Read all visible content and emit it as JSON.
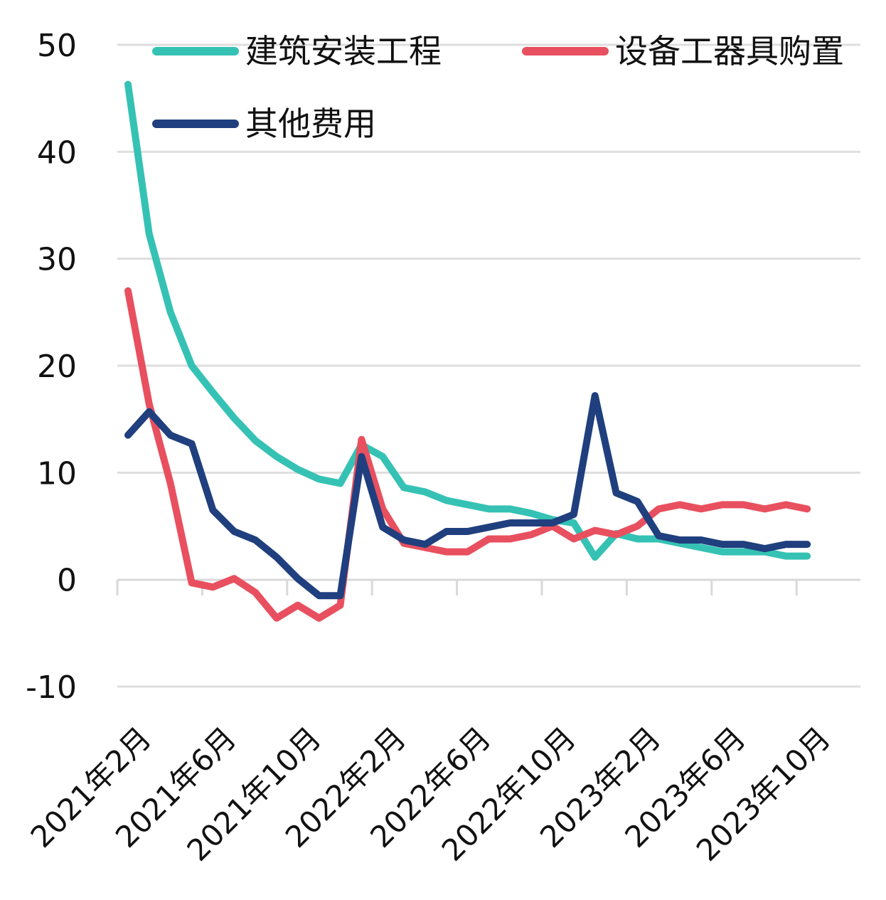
{
  "chart_data": {
    "type": "line",
    "title": "",
    "xlabel": "",
    "ylabel": "",
    "ylim": [
      -10,
      50
    ],
    "yticks": [
      -10,
      0,
      10,
      20,
      30,
      40,
      50
    ],
    "grid": true,
    "legend_position": "top",
    "x_tick_labels": [
      "2021年2月",
      "2021年6月",
      "2021年10月",
      "2022年2月",
      "2022年6月",
      "2022年10月",
      "2023年2月",
      "2023年6月",
      "2023年10月"
    ],
    "x": [
      "2021-02",
      "2021-03",
      "2021-04",
      "2021-05",
      "2021-06",
      "2021-07",
      "2021-08",
      "2021-09",
      "2021-10",
      "2021-11",
      "2021-12",
      "2022-02",
      "2022-03",
      "2022-04",
      "2022-05",
      "2022-06",
      "2022-07",
      "2022-08",
      "2022-09",
      "2022-10",
      "2022-11",
      "2022-12",
      "2023-02",
      "2023-03",
      "2023-04",
      "2023-05",
      "2023-06",
      "2023-07",
      "2023-08",
      "2023-09",
      "2023-10",
      "2023-11",
      "2023-12"
    ],
    "series": [
      {
        "name": "建筑安装工程",
        "color": "#35c2b4",
        "values": [
          46.3,
          32.3,
          25.0,
          20.0,
          17.5,
          15.1,
          13.0,
          11.5,
          10.3,
          9.4,
          9.0,
          12.6,
          11.5,
          8.6,
          8.2,
          7.4,
          7.0,
          6.6,
          6.6,
          6.2,
          5.6,
          5.3,
          2.1,
          4.3,
          3.8,
          3.8,
          3.4,
          3.0,
          2.6,
          2.6,
          2.6,
          2.2,
          2.2
        ]
      },
      {
        "name": "设备工器具购置",
        "color": "#e8505f",
        "values": [
          27.0,
          16.4,
          9.0,
          -0.3,
          -0.7,
          0.1,
          -1.2,
          -3.6,
          -2.4,
          -3.6,
          -2.4,
          13.1,
          6.6,
          3.4,
          3.0,
          2.6,
          2.6,
          3.8,
          3.8,
          4.2,
          5.0,
          3.8,
          4.6,
          4.2,
          5.0,
          6.6,
          7.0,
          6.6,
          7.0,
          7.0,
          6.6,
          7.0,
          6.6
        ]
      },
      {
        "name": "其他费用",
        "color": "#203f7e",
        "values": [
          13.5,
          15.7,
          13.5,
          12.7,
          6.5,
          4.5,
          3.7,
          2.1,
          0.1,
          -1.5,
          -1.5,
          11.5,
          4.9,
          3.7,
          3.3,
          4.5,
          4.5,
          4.9,
          5.3,
          5.3,
          5.3,
          6.1,
          17.2,
          8.1,
          7.3,
          4.1,
          3.7,
          3.7,
          3.3,
          3.3,
          2.9,
          3.3,
          3.3
        ]
      }
    ]
  }
}
